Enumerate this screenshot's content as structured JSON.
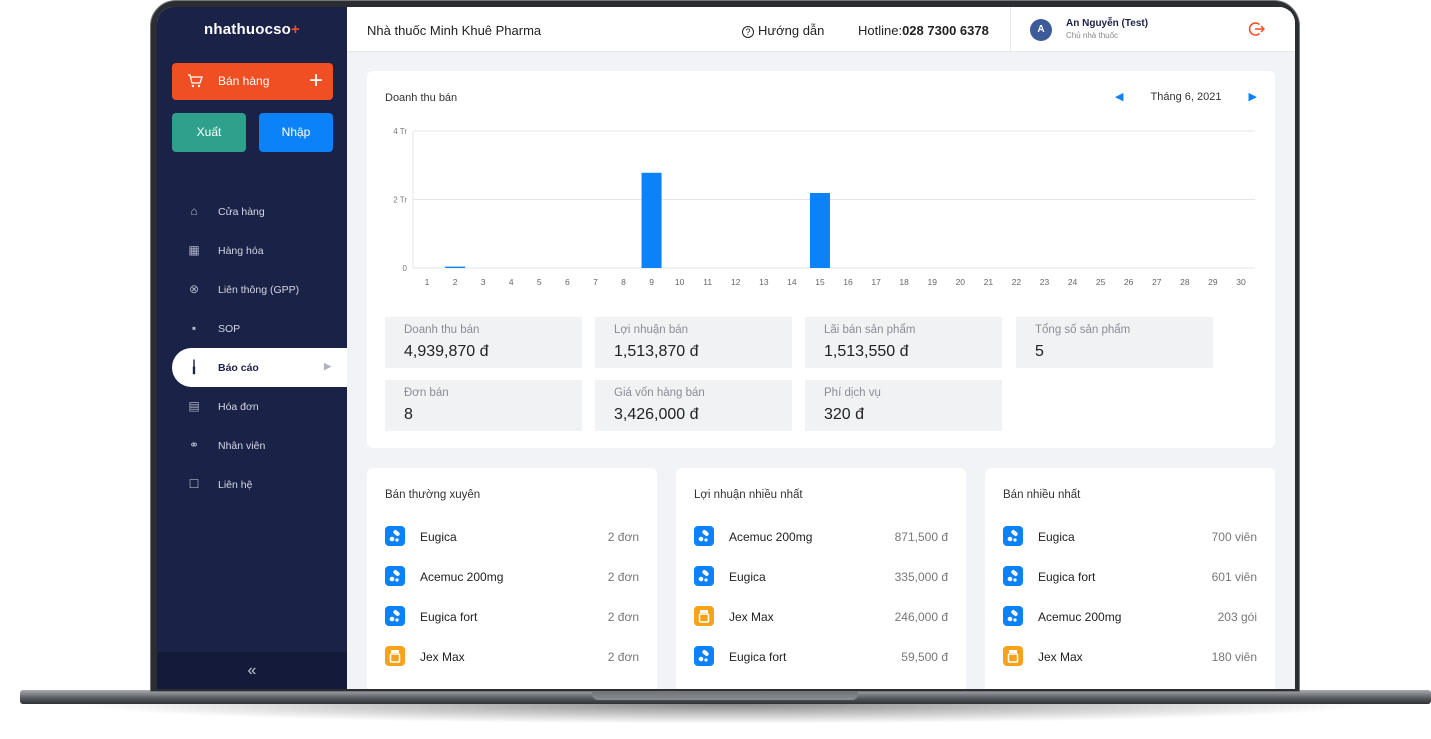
{
  "brand": {
    "logo_text": "nhathuocso",
    "logo_plus": "+"
  },
  "sidebar": {
    "sell_button": "Bán hàng",
    "export_button": "Xuất",
    "import_button": "Nhập",
    "items": [
      {
        "label": "Cửa hàng",
        "icon": "home-icon"
      },
      {
        "label": "Hàng hóa",
        "icon": "boxes-icon"
      },
      {
        "label": "Liên thông (GPP)",
        "icon": "link-icon"
      },
      {
        "label": "SOP",
        "icon": "document-icon"
      },
      {
        "label": "Báo cáo",
        "icon": "report-chart-icon",
        "active": true
      },
      {
        "label": "Hóa đơn",
        "icon": "invoice-icon"
      },
      {
        "label": "Nhân viên",
        "icon": "staff-icon"
      },
      {
        "label": "Liên hệ",
        "icon": "contact-icon"
      }
    ],
    "collapse": "«"
  },
  "topbar": {
    "shop_name": "Nhà thuốc Minh Khuê Pharma",
    "guide_icon": "?",
    "guide": "Hướng dẫn",
    "hotline_label": "Hotline:",
    "hotline_number": "028 7300 6378",
    "avatar_letter": "A",
    "user_name": "An Nguyễn (Test)",
    "user_role": "Chủ nhà thuốc"
  },
  "revenue": {
    "title": "Doanh thu bán",
    "month": "Tháng 6, 2021",
    "prev_icon": "◀",
    "next_icon": "▶"
  },
  "chart_data": {
    "type": "bar",
    "categories": [
      "1",
      "2",
      "3",
      "4",
      "5",
      "6",
      "7",
      "8",
      "9",
      "10",
      "11",
      "12",
      "13",
      "14",
      "15",
      "16",
      "17",
      "18",
      "19",
      "20",
      "21",
      "22",
      "23",
      "24",
      "25",
      "26",
      "27",
      "28",
      "29",
      "30"
    ],
    "values": [
      0,
      40000,
      0,
      0,
      0,
      0,
      0,
      0,
      2780000,
      0,
      0,
      0,
      0,
      0,
      2190000,
      0,
      0,
      0,
      0,
      0,
      0,
      0,
      0,
      0,
      0,
      0,
      0,
      0,
      0,
      0
    ],
    "yticks": [
      {
        "value": 0,
        "label": "0"
      },
      {
        "value": 2000000,
        "label": "2 Tr"
      },
      {
        "value": 4000000,
        "label": "4 Tr"
      }
    ],
    "ylim": [
      0,
      4000000
    ],
    "color": "#0b82f7",
    "grid": true
  },
  "stats": [
    {
      "label": "Doanh thu bán",
      "value": "4,939,870 đ"
    },
    {
      "label": "Lợi nhuận bán",
      "value": "1,513,870 đ"
    },
    {
      "label": "Lãi bán sản phẩm",
      "value": "1,513,550 đ"
    },
    {
      "label": "Tổng số sản phẩm",
      "value": "5"
    },
    {
      "label": "Đơn bán",
      "value": "8"
    },
    {
      "label": "Giá vốn hàng bán",
      "value": "3,426,000 đ"
    },
    {
      "label": "Phí dịch vụ",
      "value": "320 đ"
    }
  ],
  "lists": [
    {
      "title": "Bán thường xuyên",
      "rows": [
        {
          "name": "Eugica",
          "value": "2 đơn",
          "color": "blue"
        },
        {
          "name": "Acemuc 200mg",
          "value": "2 đơn",
          "color": "blue"
        },
        {
          "name": "Eugica fort",
          "value": "2 đơn",
          "color": "blue"
        },
        {
          "name": "Jex Max",
          "value": "2 đơn",
          "color": "orange"
        }
      ]
    },
    {
      "title": "Lợi nhuận nhiều nhất",
      "rows": [
        {
          "name": "Acemuc 200mg",
          "value": "871,500 đ",
          "color": "blue"
        },
        {
          "name": "Eugica",
          "value": "335,000 đ",
          "color": "blue"
        },
        {
          "name": "Jex Max",
          "value": "246,000 đ",
          "color": "orange"
        },
        {
          "name": "Eugica fort",
          "value": "59,500 đ",
          "color": "blue"
        }
      ]
    },
    {
      "title": "Bán nhiều nhất",
      "rows": [
        {
          "name": "Eugica",
          "value": "700 viên",
          "color": "blue"
        },
        {
          "name": "Eugica fort",
          "value": "601 viên",
          "color": "blue"
        },
        {
          "name": "Acemuc 200mg",
          "value": "203 gói",
          "color": "blue"
        },
        {
          "name": "Jex Max",
          "value": "180 viên",
          "color": "orange"
        }
      ]
    }
  ]
}
